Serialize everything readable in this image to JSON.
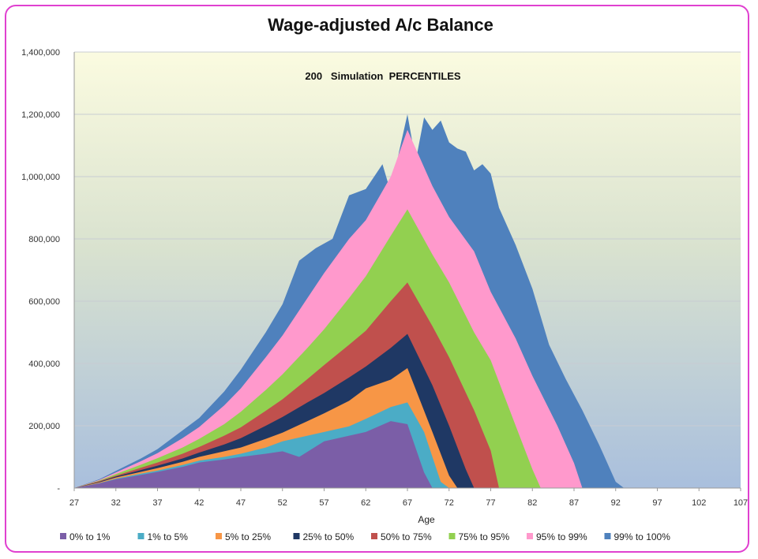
{
  "chart_data": {
    "type": "area",
    "stacked": true,
    "title": "Wage-adjusted A/c Balance",
    "subtitle": "200   Simulation  PERCENTILES",
    "xlabel": "Age",
    "ylabel": "",
    "xlim": [
      27,
      107
    ],
    "ylim": [
      0,
      1400000
    ],
    "x_ticks": [
      "27",
      "32",
      "37",
      "42",
      "47",
      "52",
      "57",
      "62",
      "67",
      "72",
      "77",
      "82",
      "87",
      "92",
      "97",
      "102",
      "107"
    ],
    "y_ticks": [
      "-",
      "200,000",
      "400,000",
      "600,000",
      "800,000",
      "1,000,000",
      "1,200,000",
      "1,400,000"
    ],
    "legend_position": "bottom",
    "grid": true,
    "series": [
      {
        "name": "0% to 1%",
        "color": "#7b5ea7",
        "points": [
          [
            27,
            0
          ],
          [
            30,
            15000
          ],
          [
            32,
            28000
          ],
          [
            35,
            42000
          ],
          [
            37,
            52000
          ],
          [
            40,
            68000
          ],
          [
            42,
            82000
          ],
          [
            45,
            92000
          ],
          [
            47,
            100000
          ],
          [
            50,
            110000
          ],
          [
            52,
            118000
          ],
          [
            54,
            100000
          ],
          [
            57,
            150000
          ],
          [
            60,
            168000
          ],
          [
            62,
            180000
          ],
          [
            65,
            215000
          ],
          [
            67,
            205000
          ],
          [
            69,
            50000
          ],
          [
            70,
            0
          ]
        ]
      },
      {
        "name": "1% to 5%",
        "color": "#4bacc6",
        "points": [
          [
            27,
            0
          ],
          [
            30,
            16000
          ],
          [
            32,
            30000
          ],
          [
            35,
            46000
          ],
          [
            37,
            56000
          ],
          [
            40,
            74000
          ],
          [
            42,
            88000
          ],
          [
            45,
            100000
          ],
          [
            47,
            110000
          ],
          [
            50,
            130000
          ],
          [
            52,
            150000
          ],
          [
            55,
            168000
          ],
          [
            57,
            180000
          ],
          [
            60,
            198000
          ],
          [
            62,
            222000
          ],
          [
            65,
            260000
          ],
          [
            67,
            275000
          ],
          [
            69,
            180000
          ],
          [
            71,
            20000
          ],
          [
            72,
            0
          ]
        ]
      },
      {
        "name": "5% to 25%",
        "color": "#f79646",
        "points": [
          [
            27,
            0
          ],
          [
            30,
            18000
          ],
          [
            32,
            34000
          ],
          [
            35,
            52000
          ],
          [
            37,
            64000
          ],
          [
            40,
            84000
          ],
          [
            42,
            100000
          ],
          [
            45,
            118000
          ],
          [
            47,
            130000
          ],
          [
            50,
            158000
          ],
          [
            52,
            178000
          ],
          [
            55,
            215000
          ],
          [
            57,
            240000
          ],
          [
            60,
            280000
          ],
          [
            62,
            320000
          ],
          [
            65,
            348000
          ],
          [
            67,
            385000
          ],
          [
            70,
            180000
          ],
          [
            72,
            40000
          ],
          [
            73,
            0
          ]
        ]
      },
      {
        "name": "25% to 50%",
        "color": "#1f3864",
        "points": [
          [
            27,
            0
          ],
          [
            30,
            20000
          ],
          [
            32,
            37000
          ],
          [
            35,
            58000
          ],
          [
            37,
            72000
          ],
          [
            40,
            95000
          ],
          [
            42,
            114000
          ],
          [
            45,
            140000
          ],
          [
            47,
            160000
          ],
          [
            50,
            200000
          ],
          [
            52,
            228000
          ],
          [
            55,
            275000
          ],
          [
            57,
            305000
          ],
          [
            60,
            355000
          ],
          [
            62,
            390000
          ],
          [
            65,
            450000
          ],
          [
            67,
            495000
          ],
          [
            70,
            330000
          ],
          [
            72,
            200000
          ],
          [
            74,
            60000
          ],
          [
            75,
            0
          ]
        ]
      },
      {
        "name": "50% to 75%",
        "color": "#c0504d",
        "points": [
          [
            27,
            0
          ],
          [
            30,
            22000
          ],
          [
            32,
            40000
          ],
          [
            35,
            65000
          ],
          [
            37,
            82000
          ],
          [
            40,
            110000
          ],
          [
            42,
            132000
          ],
          [
            45,
            168000
          ],
          [
            47,
            195000
          ],
          [
            50,
            248000
          ],
          [
            52,
            285000
          ],
          [
            55,
            350000
          ],
          [
            57,
            395000
          ],
          [
            60,
            460000
          ],
          [
            62,
            505000
          ],
          [
            65,
            600000
          ],
          [
            67,
            660000
          ],
          [
            70,
            520000
          ],
          [
            72,
            420000
          ],
          [
            75,
            250000
          ],
          [
            77,
            120000
          ],
          [
            78,
            0
          ]
        ]
      },
      {
        "name": "75% to 95%",
        "color": "#92d050",
        "points": [
          [
            27,
            0
          ],
          [
            30,
            24000
          ],
          [
            32,
            45000
          ],
          [
            35,
            75000
          ],
          [
            37,
            96000
          ],
          [
            40,
            130000
          ],
          [
            42,
            158000
          ],
          [
            45,
            205000
          ],
          [
            47,
            245000
          ],
          [
            50,
            315000
          ],
          [
            52,
            365000
          ],
          [
            55,
            450000
          ],
          [
            57,
            510000
          ],
          [
            60,
            610000
          ],
          [
            62,
            680000
          ],
          [
            65,
            810000
          ],
          [
            67,
            895000
          ],
          [
            70,
            750000
          ],
          [
            72,
            660000
          ],
          [
            75,
            500000
          ],
          [
            77,
            410000
          ],
          [
            80,
            200000
          ],
          [
            82,
            60000
          ],
          [
            83,
            0
          ]
        ]
      },
      {
        "name": "95% to 99%",
        "color": "#ff99cc",
        "points": [
          [
            27,
            0
          ],
          [
            30,
            26000
          ],
          [
            32,
            50000
          ],
          [
            35,
            86000
          ],
          [
            37,
            112000
          ],
          [
            40,
            160000
          ],
          [
            42,
            196000
          ],
          [
            45,
            265000
          ],
          [
            47,
            320000
          ],
          [
            50,
            420000
          ],
          [
            52,
            490000
          ],
          [
            55,
            610000
          ],
          [
            57,
            690000
          ],
          [
            60,
            800000
          ],
          [
            62,
            860000
          ],
          [
            65,
            1000000
          ],
          [
            67,
            1150000
          ],
          [
            70,
            970000
          ],
          [
            72,
            870000
          ],
          [
            75,
            760000
          ],
          [
            77,
            630000
          ],
          [
            80,
            480000
          ],
          [
            82,
            360000
          ],
          [
            85,
            200000
          ],
          [
            87,
            80000
          ],
          [
            88,
            0
          ]
        ]
      },
      {
        "name": "99% to 100%",
        "color": "#4f81bd",
        "points": [
          [
            27,
            0
          ],
          [
            30,
            28000
          ],
          [
            32,
            55000
          ],
          [
            35,
            95000
          ],
          [
            37,
            125000
          ],
          [
            40,
            185000
          ],
          [
            42,
            225000
          ],
          [
            45,
            310000
          ],
          [
            47,
            380000
          ],
          [
            50,
            500000
          ],
          [
            52,
            590000
          ],
          [
            54,
            730000
          ],
          [
            56,
            770000
          ],
          [
            58,
            800000
          ],
          [
            60,
            940000
          ],
          [
            62,
            960000
          ],
          [
            64,
            1040000
          ],
          [
            65,
            950000
          ],
          [
            66,
            1080000
          ],
          [
            67,
            1200000
          ],
          [
            68,
            1050000
          ],
          [
            69,
            1190000
          ],
          [
            70,
            1150000
          ],
          [
            71,
            1180000
          ],
          [
            72,
            1110000
          ],
          [
            73,
            1090000
          ],
          [
            74,
            1080000
          ],
          [
            75,
            1020000
          ],
          [
            76,
            1040000
          ],
          [
            77,
            1010000
          ],
          [
            78,
            900000
          ],
          [
            80,
            780000
          ],
          [
            82,
            640000
          ],
          [
            84,
            460000
          ],
          [
            86,
            350000
          ],
          [
            88,
            250000
          ],
          [
            90,
            140000
          ],
          [
            92,
            20000
          ],
          [
            93,
            0
          ]
        ]
      }
    ]
  }
}
